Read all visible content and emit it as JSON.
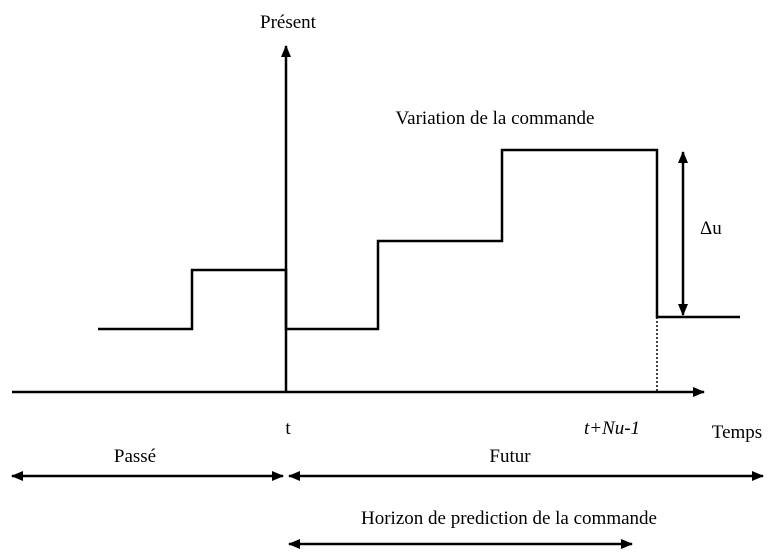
{
  "labels": {
    "present": "Présent",
    "variation": "Variation de la commande",
    "delta_u": "Δu",
    "t": "t",
    "t_nu": "t+Nu-1",
    "temps": "Temps",
    "passe": "Passé",
    "futur": "Futur",
    "horizon": "Horizon de prediction de la commande"
  }
}
